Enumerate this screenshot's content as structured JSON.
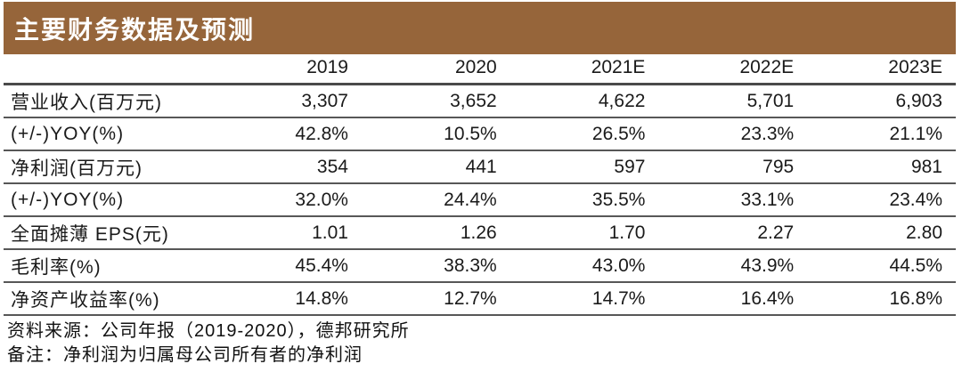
{
  "header": {
    "title": "主要财务数据及预测"
  },
  "colors": {
    "title_bar_background": "#96653A",
    "title_text": "#FFFFFF",
    "header_rule": "#4A4A4A",
    "row_rule": "#575757"
  },
  "table": {
    "columns": [
      "",
      "2019",
      "2020",
      "2021E",
      "2022E",
      "2023E"
    ],
    "rows": [
      {
        "label": "营业收入(百万元)",
        "values": [
          "3,307",
          "3,652",
          "4,622",
          "5,701",
          "6,903"
        ]
      },
      {
        "label": "(+/-)YOY(%)",
        "values": [
          "42.8%",
          "10.5%",
          "26.5%",
          "23.3%",
          "21.1%"
        ]
      },
      {
        "label": "净利润(百万元)",
        "values": [
          "354",
          "441",
          "597",
          "795",
          "981"
        ]
      },
      {
        "label": "(+/-)YOY(%)",
        "values": [
          "32.0%",
          "24.4%",
          "35.5%",
          "33.1%",
          "23.4%"
        ]
      },
      {
        "label": "全面摊薄 EPS(元)",
        "values": [
          "1.01",
          "1.26",
          "1.70",
          "2.27",
          "2.80"
        ]
      },
      {
        "label": "毛利率(%)",
        "values": [
          "45.4%",
          "38.3%",
          "43.0%",
          "43.9%",
          "44.5%"
        ]
      },
      {
        "label": "净资产收益率(%)",
        "values": [
          "14.8%",
          "12.7%",
          "14.7%",
          "16.4%",
          "16.8%"
        ]
      }
    ]
  },
  "footer": {
    "source": "资料来源：公司年报（2019-2020），德邦研究所",
    "note": "备注：净利润为归属母公司所有者的净利润"
  }
}
